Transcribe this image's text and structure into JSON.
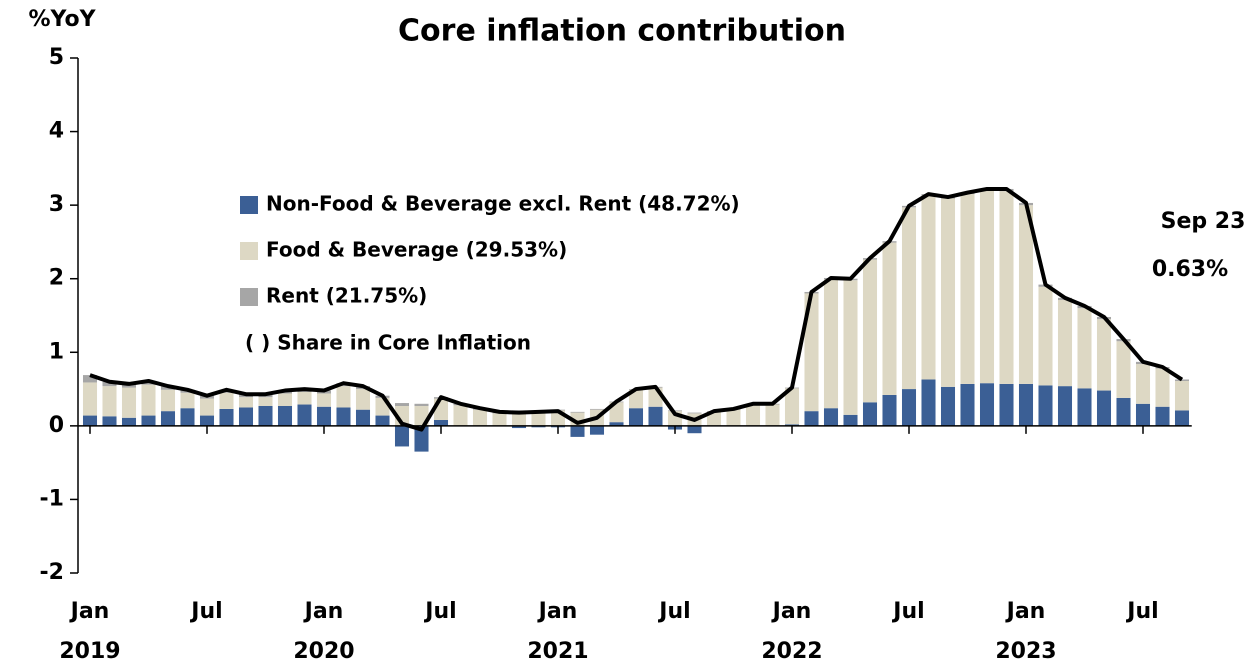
{
  "chart_data": {
    "type": "bar",
    "stacked": true,
    "title": "Core inflation contribution",
    "y_label": "%YoY",
    "categories": [
      "Jan",
      null,
      null,
      null,
      null,
      null,
      "Jul",
      null,
      null,
      null,
      null,
      null,
      "Jan",
      null,
      null,
      null,
      null,
      null,
      "Jul",
      null,
      null,
      null,
      null,
      null,
      "Jan",
      null,
      null,
      null,
      null,
      null,
      "Jul",
      null,
      null,
      null,
      null,
      null,
      "Jan",
      null,
      null,
      null,
      null,
      null,
      "Jul",
      null,
      null,
      null,
      null,
      null,
      "Jan",
      null,
      null,
      null,
      null,
      null,
      "Jul",
      null,
      null
    ],
    "years": [
      "2019",
      "2020",
      "2021",
      "2022",
      "2023"
    ],
    "ylim": [
      -2,
      5
    ],
    "yticks": [
      -2,
      -1,
      0,
      1,
      2,
      3,
      4,
      5
    ],
    "series": [
      {
        "name": "Non-Food & Beverage excl. Rent (48.72%)",
        "color": "#3b5f95",
        "values": [
          0.14,
          0.13,
          0.11,
          0.14,
          0.2,
          0.24,
          0.14,
          0.23,
          0.25,
          0.27,
          0.27,
          0.29,
          0.26,
          0.25,
          0.22,
          0.14,
          -0.28,
          -0.35,
          0.08,
          0,
          0,
          0,
          -0.03,
          -0.02,
          -0.02,
          -0.15,
          -0.12,
          0.05,
          0.24,
          0.26,
          -0.05,
          -0.1,
          0,
          0,
          0,
          0,
          0.02,
          0.2,
          0.24,
          0.15,
          0.32,
          0.42,
          0.5,
          0.63,
          0.53,
          0.57,
          0.58,
          0.57,
          0.57,
          0.55,
          0.54,
          0.51,
          0.48,
          0.38,
          0.3,
          0.26,
          0.21
        ]
      },
      {
        "name": "Food & Beverage (29.53%)",
        "color": "#ddd8c4",
        "values": [
          0.45,
          0.41,
          0.41,
          0.42,
          0.29,
          0.21,
          0.23,
          0.22,
          0.14,
          0.12,
          0.17,
          0.17,
          0.18,
          0.29,
          0.28,
          0.24,
          0.27,
          0.27,
          0.29,
          0.28,
          0.22,
          0.17,
          0.19,
          0.19,
          0.21,
          0.18,
          0.22,
          0.27,
          0.25,
          0.26,
          0.2,
          0.17,
          0.19,
          0.22,
          0.29,
          0.29,
          0.49,
          1.6,
          1.75,
          1.83,
          1.94,
          2.07,
          2.47,
          2.5,
          2.56,
          2.58,
          2.62,
          2.62,
          2.43,
          1.34,
          1.17,
          1.09,
          0.97,
          0.77,
          0.54,
          0.52,
          0.4
        ]
      },
      {
        "name": "Rent (21.75%)",
        "color": "#a6a6a6",
        "values": [
          0.1,
          0.06,
          0.05,
          0.05,
          0.05,
          0.04,
          0.04,
          0.04,
          0.04,
          0.04,
          0.04,
          0.04,
          0.04,
          0.04,
          0.04,
          0.03,
          0.04,
          0.03,
          0.02,
          0.02,
          0.02,
          0.02,
          0.02,
          0.02,
          0.01,
          0.01,
          0.01,
          0.01,
          0.01,
          0.01,
          0.01,
          0.01,
          0.01,
          0.01,
          0.01,
          0.01,
          0.01,
          0.02,
          0.02,
          0.02,
          0.02,
          0.02,
          0.02,
          0.02,
          0.02,
          0.02,
          0.02,
          0.03,
          0.03,
          0.03,
          0.03,
          0.03,
          0.03,
          0.03,
          0.03,
          0.02,
          0.02
        ]
      }
    ],
    "line": {
      "color": "#000000",
      "values": [
        0.69,
        0.6,
        0.57,
        0.61,
        0.54,
        0.49,
        0.41,
        0.49,
        0.43,
        0.43,
        0.48,
        0.5,
        0.48,
        0.58,
        0.54,
        0.41,
        0.03,
        -0.05,
        0.39,
        0.3,
        0.24,
        0.19,
        0.18,
        0.19,
        0.2,
        0.04,
        0.11,
        0.33,
        0.5,
        0.53,
        0.16,
        0.08,
        0.2,
        0.23,
        0.3,
        0.3,
        0.52,
        1.82,
        2.01,
        2.0,
        2.28,
        2.51,
        2.99,
        3.15,
        3.11,
        3.17,
        3.22,
        3.22,
        3.03,
        1.92,
        1.74,
        1.63,
        1.48,
        1.18,
        0.87,
        0.8,
        0.63
      ]
    },
    "legend_note": "( ) Share in Core Inflation",
    "annotation": [
      "Sep 23",
      "0.63%"
    ]
  }
}
